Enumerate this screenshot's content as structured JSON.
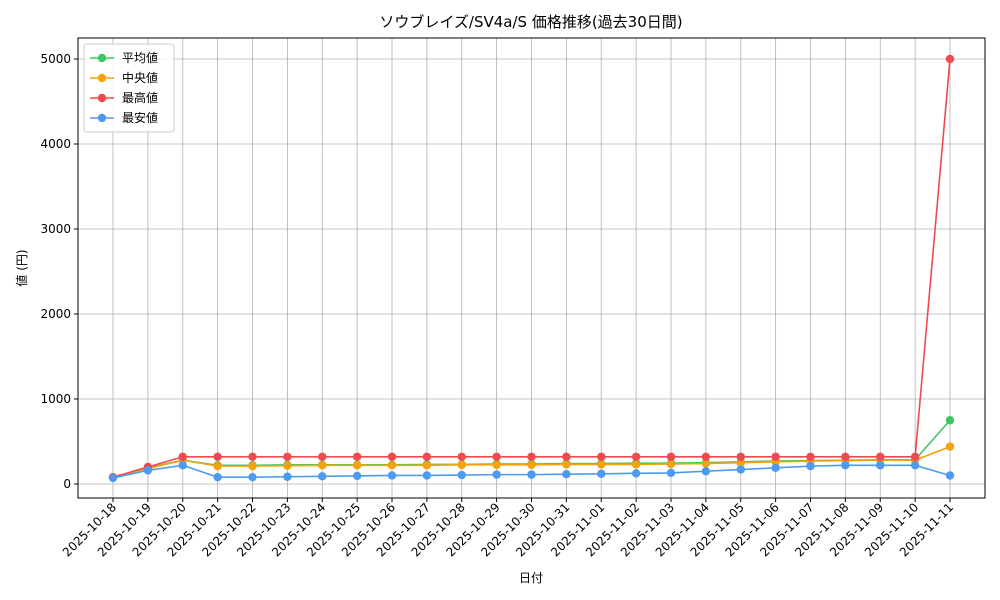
{
  "chart_data": {
    "type": "line",
    "title": "ソウブレイズ/SV4a/S 価格推移(過去30日間)",
    "x_label": "日付",
    "y_label": "値 (円)",
    "categories": [
      "2025-10-18",
      "2025-10-19",
      "2025-10-20",
      "2025-10-21",
      "2025-10-22",
      "2025-10-23",
      "2025-10-24",
      "2025-10-25",
      "2025-10-26",
      "2025-10-27",
      "2025-10-28",
      "2025-10-29",
      "2025-10-30",
      "2025-10-31",
      "2025-11-01",
      "2025-11-02",
      "2025-11-03",
      "2025-11-04",
      "2025-11-05",
      "2025-11-06",
      "2025-11-07",
      "2025-11-08",
      "2025-11-09",
      "2025-11-10",
      "2025-11-11"
    ],
    "series": [
      {
        "name": "平均値",
        "color": "#3cc864",
        "values": [
          80,
          190,
          280,
          220,
          220,
          225,
          225,
          225,
          225,
          230,
          230,
          235,
          235,
          240,
          240,
          245,
          245,
          250,
          260,
          270,
          275,
          280,
          285,
          285,
          750
        ]
      },
      {
        "name": "中央値",
        "color": "#f5a20f",
        "values": [
          80,
          180,
          280,
          210,
          210,
          215,
          220,
          220,
          220,
          220,
          225,
          225,
          225,
          230,
          230,
          230,
          235,
          240,
          250,
          260,
          270,
          275,
          280,
          280,
          440
        ]
      },
      {
        "name": "最高値",
        "color": "#ef4a4f",
        "values": [
          80,
          200,
          320,
          320,
          320,
          320,
          320,
          320,
          320,
          320,
          320,
          320,
          320,
          320,
          320,
          320,
          320,
          320,
          320,
          320,
          320,
          320,
          320,
          320,
          5000
        ]
      },
      {
        "name": "最安値",
        "color": "#4d9bf0",
        "values": [
          70,
          160,
          220,
          80,
          80,
          85,
          90,
          95,
          100,
          100,
          105,
          110,
          110,
          115,
          120,
          125,
          130,
          150,
          170,
          190,
          210,
          220,
          220,
          220,
          100
        ]
      }
    ],
    "ylim": [
      -165,
      5247
    ],
    "yticks": [
      0,
      1000,
      2000,
      3000,
      4000,
      5000
    ],
    "grid": true,
    "legend": "upper left"
  }
}
